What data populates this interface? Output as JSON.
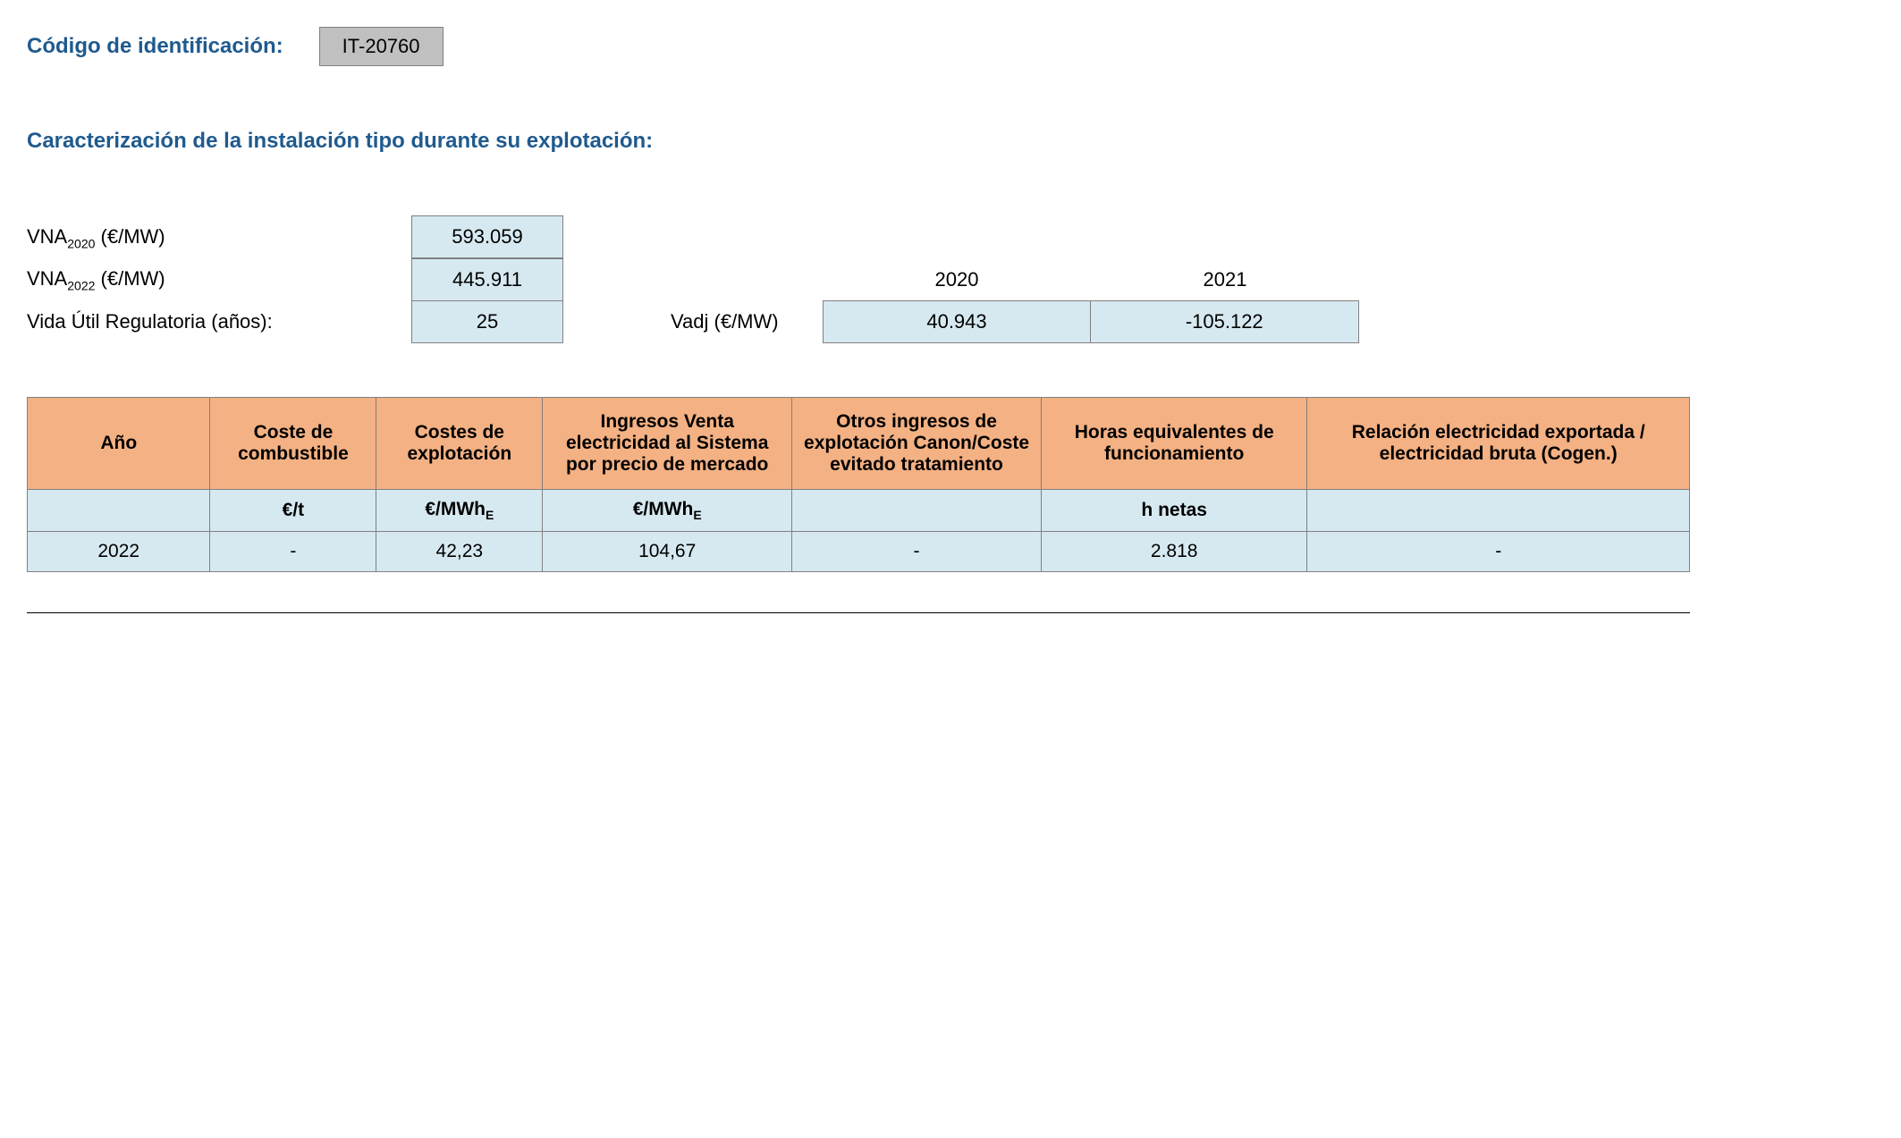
{
  "header": {
    "code_label": "Código de identificación:",
    "code_value": "IT-20760"
  },
  "section_title": "Caracterización de la instalación tipo durante su explotación:",
  "parameters": {
    "vna2020_label_pre": "VNA",
    "vna2020_sub": "2020",
    "vna2020_label_post": " (€/MW)",
    "vna2020_value": "593.059",
    "vna2022_label_pre": "VNA",
    "vna2022_sub": "2022",
    "vna2022_label_post": " (€/MW)",
    "vna2022_value": "445.911",
    "vida_label": "Vida Útil Regulatoria (años):",
    "vida_value": "25"
  },
  "vadj": {
    "label": "Vadj (€/MW)",
    "year1": "2020",
    "year2": "2021",
    "value1": "40.943",
    "value2": "-105.122"
  },
  "table": {
    "columns": [
      "Año",
      "Coste de combustible",
      "Costes de explotación",
      "Ingresos Venta electricidad al Sistema por precio de mercado",
      "Otros ingresos de explotación Canon/Coste evitado tratamiento",
      "Horas equivalentes de funcionamiento",
      "Relación electricidad exportada / electricidad bruta (Cogen.)"
    ],
    "units": [
      "",
      "€/t",
      "€/MWh",
      "€/MWh",
      "",
      "h netas",
      ""
    ],
    "unit_sub_e": "E",
    "rows": [
      [
        "2022",
        "-",
        "42,23",
        "104,67",
        "-",
        "2.818",
        "-"
      ]
    ],
    "header_bg_color": "#f4b183",
    "cell_bg_color": "#d6e9f0",
    "border_color": "#808080"
  }
}
